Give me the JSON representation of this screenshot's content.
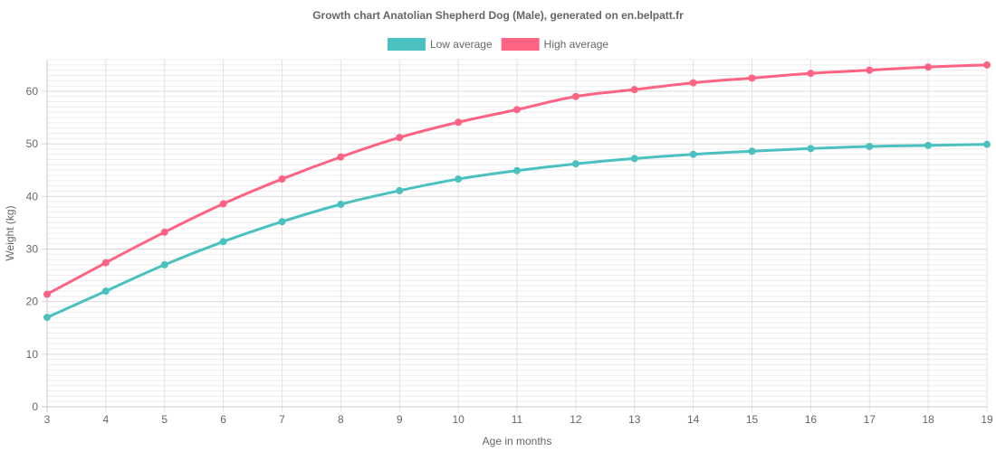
{
  "chart_data": {
    "type": "line",
    "title": "Growth chart Anatolian Shepherd Dog (Male), generated on en.belpatt.fr",
    "xlabel": "Age in months",
    "ylabel": "Weight (kg)",
    "x": [
      3,
      4,
      5,
      6,
      7,
      8,
      9,
      10,
      11,
      12,
      13,
      14,
      15,
      16,
      17,
      18,
      19
    ],
    "xlim": [
      3,
      19
    ],
    "ylim": [
      0,
      66
    ],
    "yticks": [
      0,
      10,
      20,
      30,
      40,
      50,
      60
    ],
    "grid": true,
    "legend_position": "top",
    "series": [
      {
        "name": "Low average",
        "color": "#4bc0c0",
        "values": [
          17.0,
          22.0,
          27.0,
          31.4,
          35.2,
          38.5,
          41.1,
          43.3,
          44.9,
          46.2,
          47.2,
          48.0,
          48.6,
          49.1,
          49.5,
          49.7,
          49.9
        ]
      },
      {
        "name": "High average",
        "color": "#ff6384",
        "values": [
          21.4,
          27.4,
          33.2,
          38.6,
          43.3,
          47.5,
          51.2,
          54.1,
          56.5,
          59.0,
          60.3,
          61.6,
          62.5,
          63.4,
          64.0,
          64.6,
          65.0
        ]
      }
    ]
  }
}
